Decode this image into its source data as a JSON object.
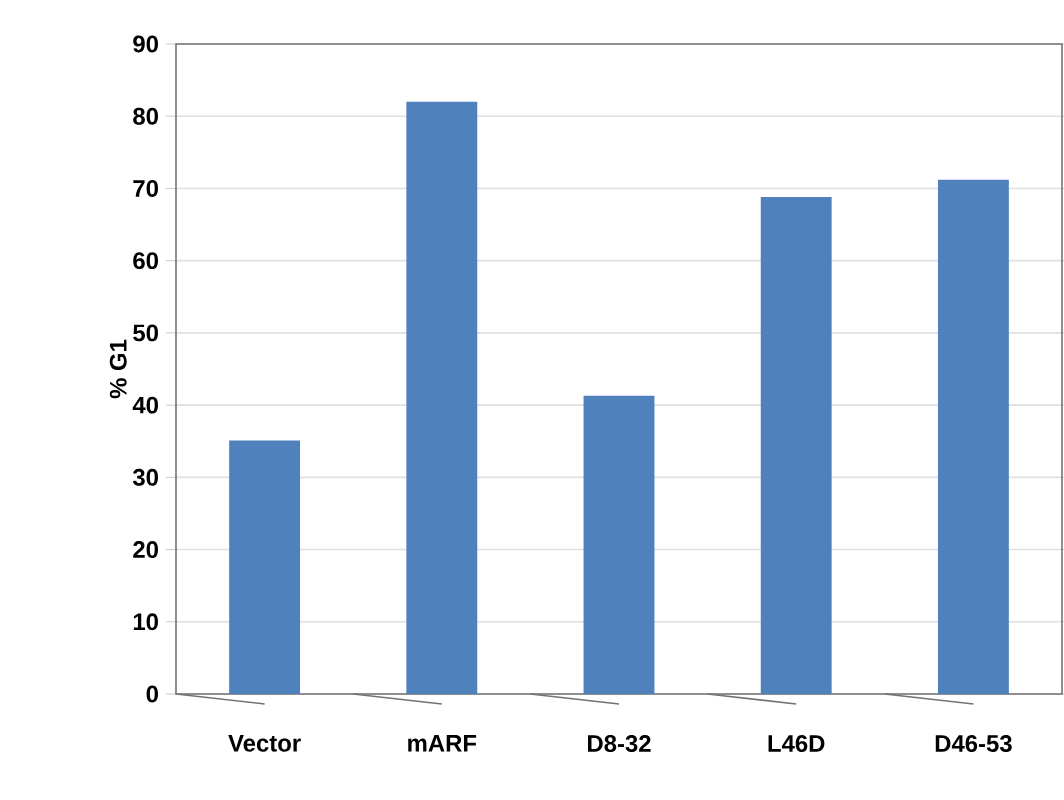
{
  "chart_data": {
    "type": "bar",
    "ylabel": "% G1",
    "categories": [
      "Vector",
      "mARF",
      "D8-32",
      "L46D",
      "D46-53"
    ],
    "values": [
      35.1,
      82,
      41.3,
      68.8,
      71.2
    ],
    "color": "#4f81bd",
    "ylim": [
      0,
      90
    ],
    "yticks": [
      0,
      10,
      20,
      30,
      40,
      50,
      60,
      70,
      80,
      90
    ],
    "grid": "y"
  }
}
